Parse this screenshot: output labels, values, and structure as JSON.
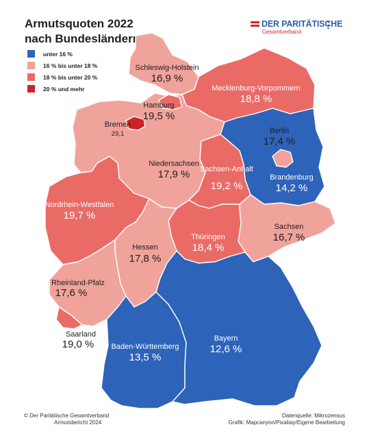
{
  "title_line1": "Armutsquoten 2022",
  "title_line2": "nach Bundesländern",
  "logo": {
    "name": "DER PARITÄTISCHE",
    "sub": "Gesamtverband"
  },
  "legend": [
    {
      "label": "unter 16 %",
      "color": "#2d63b8"
    },
    {
      "label": "16 % bis unter 18 %",
      "color": "#f0a39b"
    },
    {
      "label": "18 % bis unter 20 %",
      "color": "#ea6b66"
    },
    {
      "label": "20 % und mehr",
      "color": "#cf2228"
    }
  ],
  "states": [
    {
      "name": "Schleswig-Holstein",
      "value": "16,9 %",
      "category": 1
    },
    {
      "name": "Hamburg",
      "value": "19,5 %",
      "category": 2
    },
    {
      "name": "Mecklenburg-Vorpommern",
      "value": "18,8 %",
      "category": 2
    },
    {
      "name": "Bremen",
      "value": "29,1",
      "category": 3
    },
    {
      "name": "Niedersachsen",
      "value": "17,9 %",
      "category": 1
    },
    {
      "name": "Berlin",
      "value": "17,4 %",
      "category": 1
    },
    {
      "name": "Brandenburg",
      "value": "14,2 %",
      "category": 0
    },
    {
      "name": "Sachsen-Anhalt",
      "value": "19,2 %",
      "category": 2
    },
    {
      "name": "Nordrhein-Westfalen",
      "value": "19,7 %",
      "category": 2
    },
    {
      "name": "Thüringen",
      "value": "18,4 %",
      "category": 2
    },
    {
      "name": "Sachsen",
      "value": "16,7 %",
      "category": 1
    },
    {
      "name": "Hessen",
      "value": "17,8 %",
      "category": 1
    },
    {
      "name": "Rheinland-Pfalz",
      "value": "17,6 %",
      "category": 1
    },
    {
      "name": "Saarland",
      "value": "19,0 %",
      "category": 2
    },
    {
      "name": "Baden-Württemberg",
      "value": "13,5 %",
      "category": 0
    },
    {
      "name": "Bayern",
      "value": "12,6 %",
      "category": 0
    }
  ],
  "footer": {
    "left_line1": "© Der Paritätische Gesamtverband",
    "left_line2": "Armutsbericht 2024",
    "right_line1": "Datenquelle: Mikrozensus",
    "right_line2": "Grafik: Mapcanyon/Pixabay/Eigene Bearbeitung"
  }
}
